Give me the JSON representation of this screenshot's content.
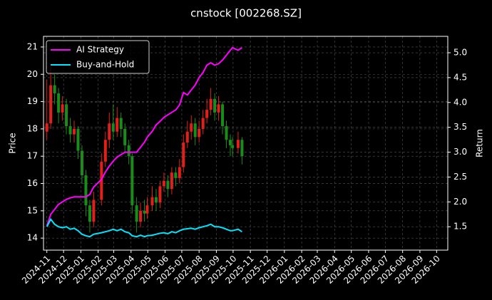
{
  "chart_data": {
    "type": "candlestick",
    "title": "cnstock [002268.SZ]",
    "y_label": "Price",
    "y2_label": "Return",
    "x": [
      "2024-11-01",
      "2024-11-08",
      "2024-11-15",
      "2024-11-22",
      "2024-11-29",
      "2024-12-06",
      "2024-12-13",
      "2024-12-20",
      "2024-12-27",
      "2025-01-03",
      "2025-01-10",
      "2025-01-17",
      "2025-01-24",
      "2025-02-07",
      "2025-02-14",
      "2025-02-21",
      "2025-02-28",
      "2025-03-07",
      "2025-03-14",
      "2025-03-21",
      "2025-03-28",
      "2025-04-03",
      "2025-04-11",
      "2025-04-18",
      "2025-04-25",
      "2025-04-30",
      "2025-05-09",
      "2025-05-16",
      "2025-05-23",
      "2025-05-30",
      "2025-06-06",
      "2025-06-13",
      "2025-06-20",
      "2025-06-27",
      "2025-07-04",
      "2025-07-11",
      "2025-07-18",
      "2025-07-25",
      "2025-08-01",
      "2025-08-08",
      "2025-08-15",
      "2025-08-22",
      "2025-08-29",
      "2025-09-05",
      "2025-09-12",
      "2025-09-19",
      "2025-09-26",
      "2025-09-30",
      "2025-10-10",
      "2025-10-17"
    ],
    "open": [
      17.9,
      18.2,
      19.6,
      19.3,
      18.6,
      18.9,
      18.1,
      17.8,
      18.0,
      17.2,
      16.3,
      15.2,
      14.6,
      15.4,
      16.8,
      17.6,
      18.2,
      17.9,
      18.4,
      18.0,
      17.4,
      17.0,
      15.2,
      14.6,
      15.0,
      14.9,
      15.2,
      15.5,
      15.3,
      15.9,
      16.1,
      15.8,
      16.4,
      16.2,
      16.6,
      17.5,
      17.9,
      18.2,
      17.7,
      18.0,
      18.4,
      18.7,
      19.1,
      18.6,
      18.9,
      18.1,
      17.6,
      17.4,
      17.3,
      17.6
    ],
    "high": [
      19.8,
      20.3,
      20.0,
      19.5,
      19.2,
      19.1,
      18.4,
      18.3,
      18.1,
      17.4,
      16.5,
      15.4,
      15.7,
      17.1,
      17.9,
      18.6,
      18.9,
      18.8,
      18.6,
      18.2,
      17.6,
      17.1,
      15.5,
      15.3,
      15.4,
      15.5,
      15.9,
      15.8,
      16.1,
      16.4,
      16.3,
      16.6,
      16.6,
      16.9,
      17.8,
      18.3,
      18.5,
      18.4,
      18.3,
      18.7,
      19.1,
      19.5,
      19.3,
      19.2,
      19.0,
      18.3,
      17.8,
      17.7,
      17.9,
      17.7
    ],
    "low": [
      17.6,
      18.0,
      18.9,
      18.2,
      18.3,
      17.8,
      17.5,
      17.5,
      16.9,
      16.0,
      14.8,
      14.2,
      14.4,
      15.2,
      16.6,
      17.3,
      17.6,
      17.7,
      17.7,
      17.1,
      16.7,
      14.9,
      14.2,
      14.4,
      14.6,
      14.7,
      15.0,
      15.0,
      15.1,
      15.7,
      15.5,
      15.6,
      15.9,
      16.0,
      16.4,
      17.3,
      17.6,
      17.4,
      17.5,
      17.8,
      18.2,
      18.5,
      18.3,
      18.3,
      17.8,
      17.3,
      17.0,
      17.0,
      17.1,
      16.7
    ],
    "close": [
      18.2,
      19.6,
      19.3,
      18.6,
      18.9,
      18.1,
      17.8,
      18.0,
      17.2,
      16.3,
      15.2,
      14.6,
      15.4,
      16.8,
      17.6,
      18.2,
      17.9,
      18.4,
      18.0,
      17.4,
      17.0,
      15.2,
      14.6,
      15.0,
      14.9,
      15.2,
      15.5,
      15.3,
      15.9,
      16.1,
      15.8,
      16.4,
      16.2,
      16.6,
      17.5,
      17.9,
      18.2,
      17.7,
      18.0,
      18.4,
      18.7,
      19.1,
      18.6,
      18.9,
      18.1,
      17.6,
      17.4,
      17.3,
      17.6,
      17.0
    ],
    "up_color": "#e0201a",
    "down_color": "#1a8c1a",
    "series": [
      {
        "name": "AI Strategy",
        "color": "#ff00ff",
        "axis": "y2",
        "values": [
          1.52,
          1.75,
          1.85,
          1.95,
          2.0,
          2.05,
          2.08,
          2.1,
          2.1,
          2.1,
          2.1,
          2.15,
          2.3,
          2.45,
          2.6,
          2.72,
          2.82,
          2.9,
          2.95,
          3.0,
          3.0,
          3.0,
          3.0,
          3.1,
          3.2,
          3.3,
          3.42,
          3.55,
          3.62,
          3.7,
          3.75,
          3.8,
          3.85,
          3.95,
          4.2,
          4.15,
          4.25,
          4.35,
          4.5,
          4.6,
          4.75,
          4.8,
          4.75,
          4.78,
          4.85,
          4.95,
          5.05,
          5.1,
          5.05,
          5.1
        ]
      },
      {
        "name": "Buy-and-Hold",
        "color": "#00e5ff",
        "axis": "y2",
        "values": [
          1.5,
          1.65,
          1.55,
          1.5,
          1.48,
          1.5,
          1.45,
          1.47,
          1.42,
          1.35,
          1.32,
          1.3,
          1.35,
          1.38,
          1.4,
          1.42,
          1.45,
          1.42,
          1.45,
          1.4,
          1.38,
          1.32,
          1.3,
          1.33,
          1.3,
          1.32,
          1.33,
          1.35,
          1.37,
          1.38,
          1.36,
          1.4,
          1.38,
          1.42,
          1.45,
          1.46,
          1.47,
          1.45,
          1.48,
          1.5,
          1.52,
          1.55,
          1.5,
          1.5,
          1.48,
          1.45,
          1.42,
          1.42,
          1.45,
          1.4
        ]
      }
    ],
    "xlim": [
      "2024-10-26",
      "2026-10-21"
    ],
    "xticks": [
      {
        "value": "2024-11-01",
        "label": "2024-11"
      },
      {
        "value": "2024-12-01",
        "label": "2024-12"
      },
      {
        "value": "2025-01-01",
        "label": "2025-01"
      },
      {
        "value": "2025-02-01",
        "label": "2025-02"
      },
      {
        "value": "2025-03-01",
        "label": "2025-03"
      },
      {
        "value": "2025-04-01",
        "label": "2025-04"
      },
      {
        "value": "2025-05-01",
        "label": "2025-05"
      },
      {
        "value": "2025-06-01",
        "label": "2025-06"
      },
      {
        "value": "2025-07-01",
        "label": "2025-07"
      },
      {
        "value": "2025-08-01",
        "label": "2025-08"
      },
      {
        "value": "2025-09-01",
        "label": "2025-09"
      },
      {
        "value": "2025-10-01",
        "label": "2025-10"
      },
      {
        "value": "2025-11-01",
        "label": "2025-11"
      },
      {
        "value": "2025-12-01",
        "label": "2025-12"
      },
      {
        "value": "2026-01-01",
        "label": "2026-01"
      },
      {
        "value": "2026-02-01",
        "label": "2026-02"
      },
      {
        "value": "2026-03-01",
        "label": "2026-03"
      },
      {
        "value": "2026-04-01",
        "label": "2026-04"
      },
      {
        "value": "2026-05-01",
        "label": "2026-05"
      },
      {
        "value": "2026-06-01",
        "label": "2026-06"
      },
      {
        "value": "2026-07-01",
        "label": "2026-07"
      },
      {
        "value": "2026-08-01",
        "label": "2026-08"
      },
      {
        "value": "2026-09-01",
        "label": "2026-09"
      },
      {
        "value": "2026-10-01",
        "label": "2026-10"
      }
    ],
    "ylim": [
      13.56,
      21.39
    ],
    "yticks": [
      14,
      15,
      16,
      17,
      18,
      19,
      20,
      21
    ],
    "y2lim": [
      1.03,
      5.33
    ],
    "y2ticks": [
      1.5,
      {
        "value": 2,
        "label": "2.0"
      },
      2.5,
      {
        "value": 3,
        "label": "3.0"
      },
      3.5,
      {
        "value": 4,
        "label": "4.0"
      },
      4.5,
      {
        "value": 5,
        "label": "5.0"
      }
    ],
    "grid": true,
    "legend": "upper left"
  }
}
